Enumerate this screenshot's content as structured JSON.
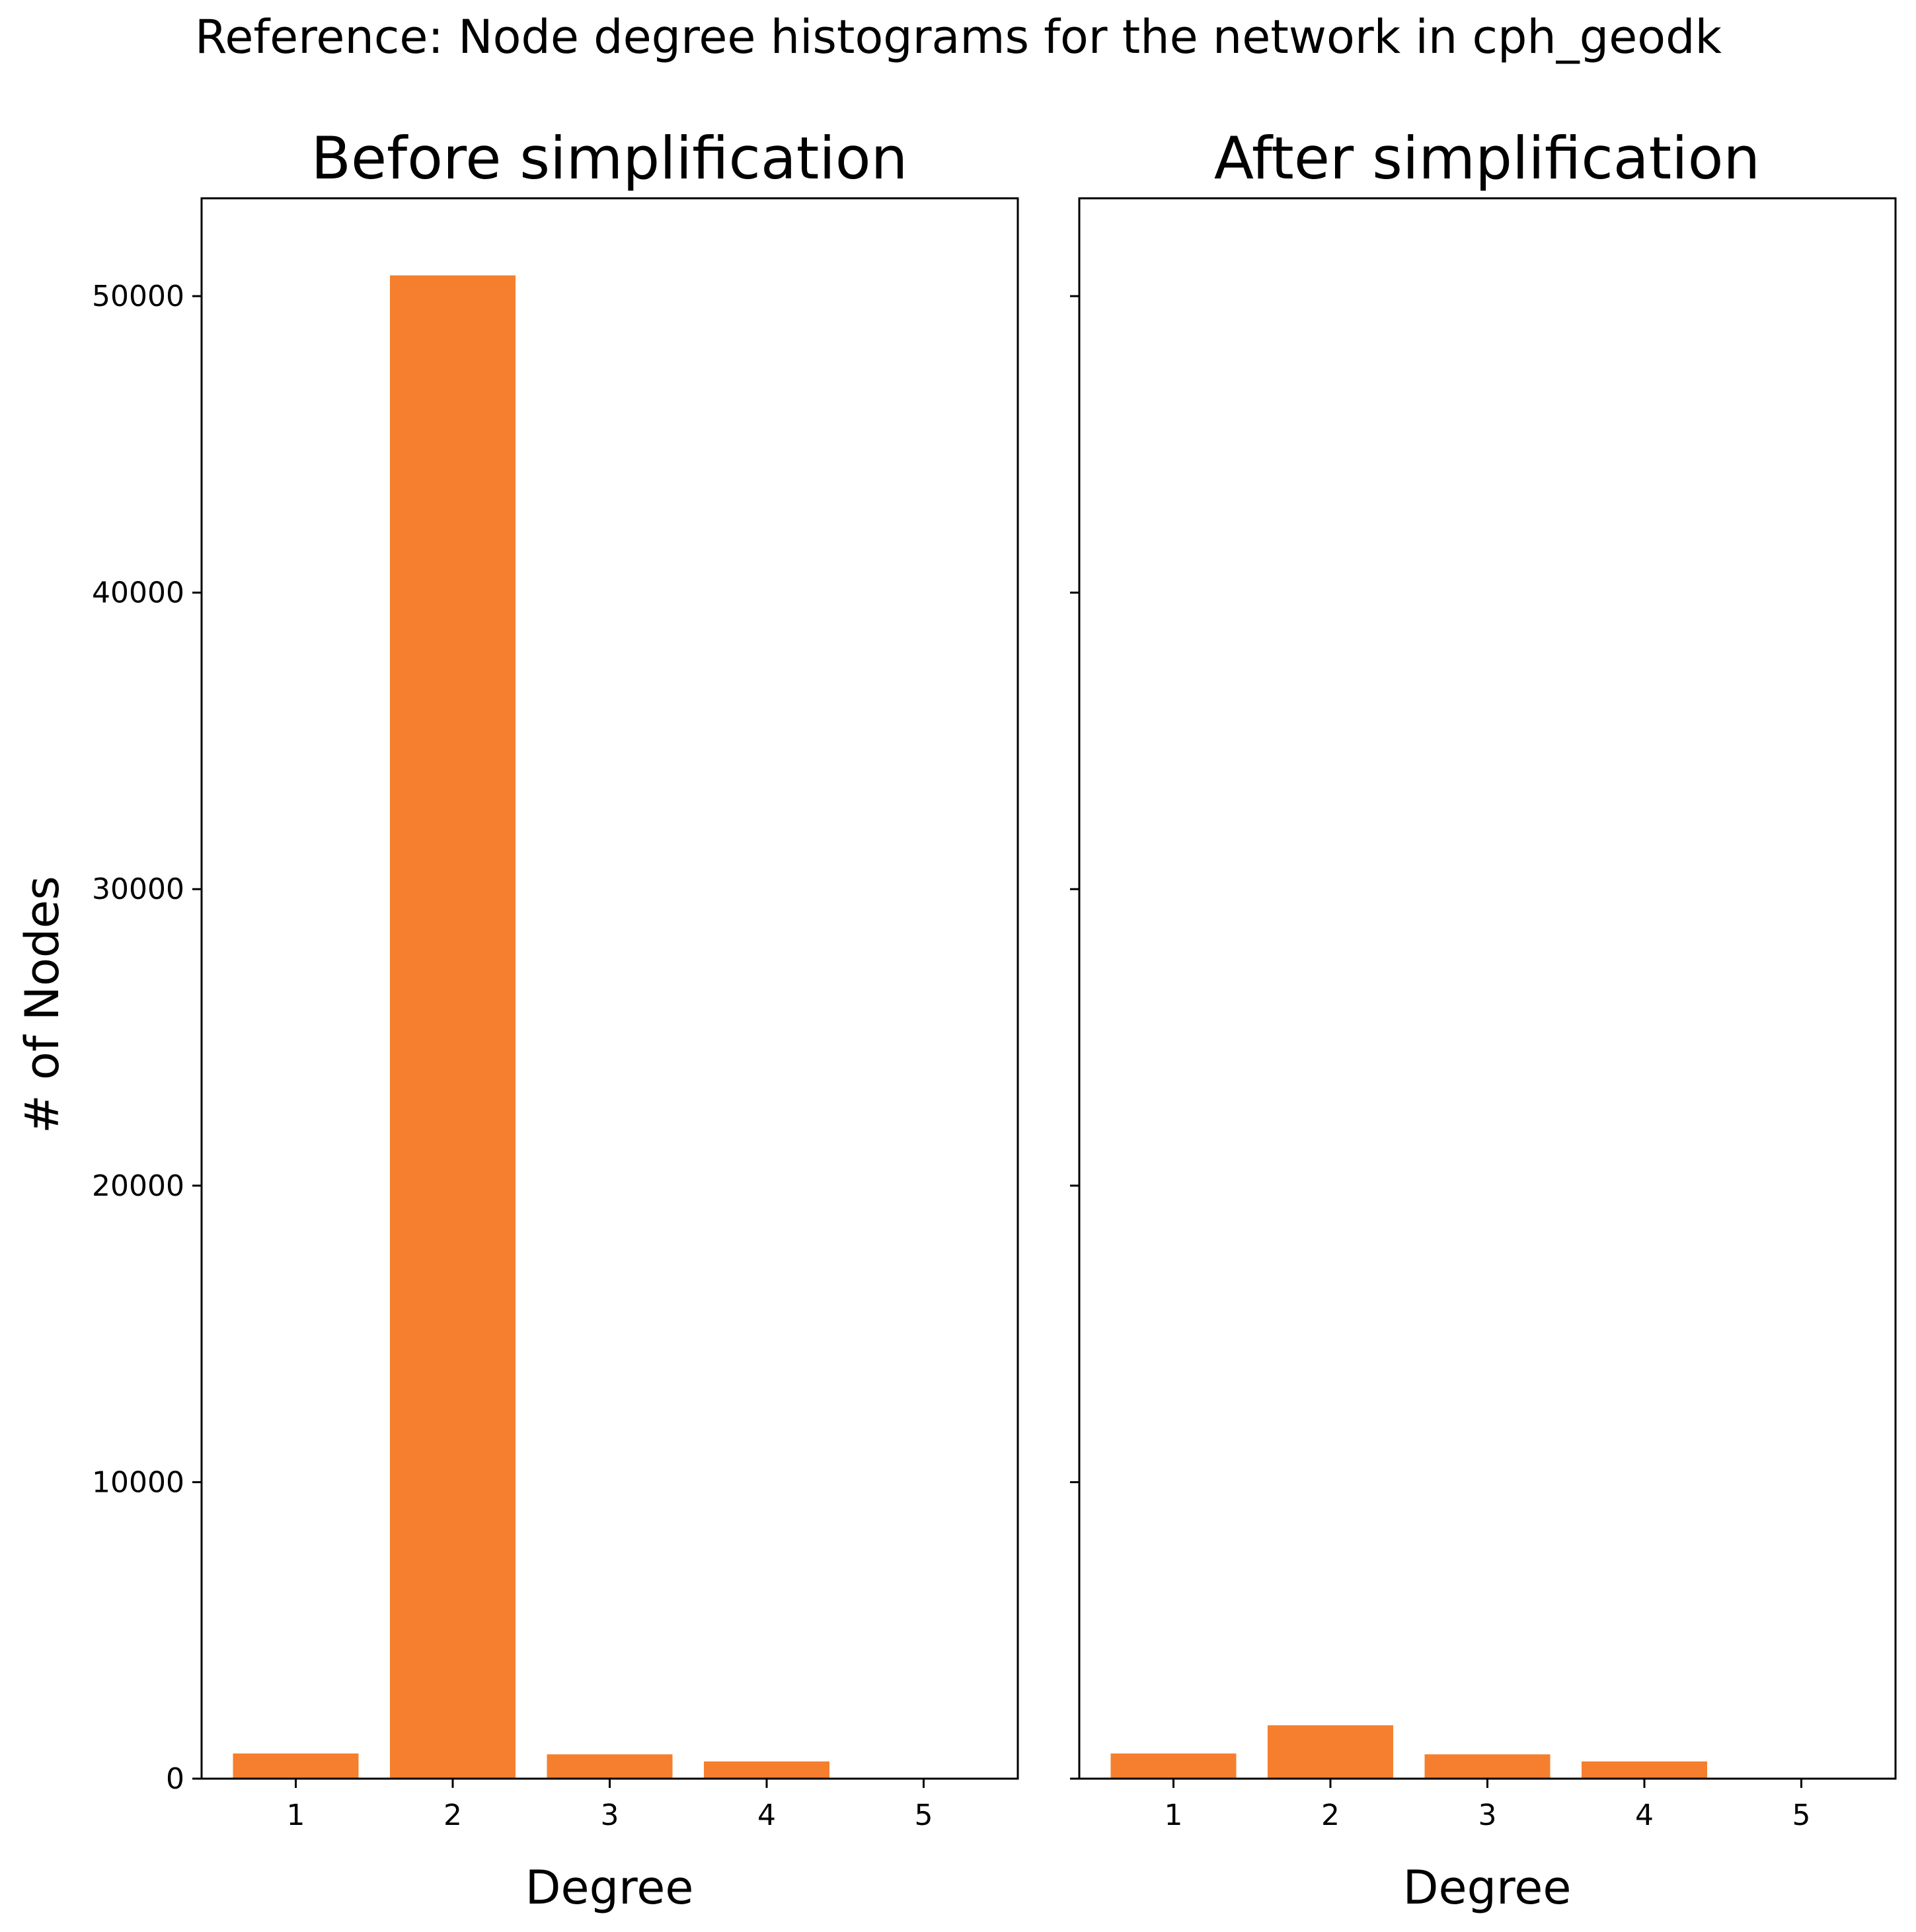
{
  "figure": {
    "suptitle": "Reference: Node degree histograms for the network in cph_geodk",
    "shared_ylabel": "# of Nodes",
    "bar_color": "#f57f2e"
  },
  "chart_data": [
    {
      "type": "bar",
      "title": "Before simplification",
      "xlabel": "Degree",
      "ylabel": "# of Nodes",
      "categories": [
        "1",
        "2",
        "3",
        "4",
        "5"
      ],
      "values": [
        850,
        50700,
        820,
        580,
        20
      ],
      "ylim": [
        0,
        53300
      ],
      "yticks": [
        0,
        10000,
        20000,
        30000,
        40000,
        50000
      ],
      "grid": false
    },
    {
      "type": "bar",
      "title": "After simplification",
      "xlabel": "Degree",
      "ylabel": "",
      "categories": [
        "1",
        "2",
        "3",
        "4",
        "5"
      ],
      "values": [
        850,
        1800,
        820,
        580,
        20
      ],
      "ylim": [
        0,
        53300
      ],
      "yticks": [
        0,
        10000,
        20000,
        30000,
        40000,
        50000
      ],
      "grid": false
    }
  ]
}
